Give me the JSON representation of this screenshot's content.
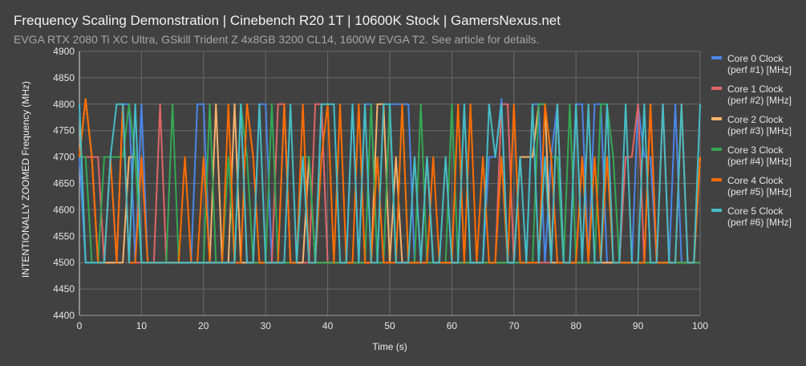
{
  "chart_data": {
    "type": "line",
    "title": "Frequency Scaling Demonstration | Cinebench R20 1T | 10600K Stock | GamersNexus.net",
    "subtitle": "EVGA RTX 2080 Ti XC Ultra, GSkill Trident Z 4x8GB 3200 CL14, 1600W EVGA T2. See article for details.",
    "xlabel": "Time (s)",
    "ylabel": "INTENTIONALLY ZOOMED Frequency (MHz)",
    "xlim": [
      0,
      100
    ],
    "ylim": [
      4400,
      4900
    ],
    "xticks": [
      0,
      10,
      20,
      30,
      40,
      50,
      60,
      70,
      80,
      90,
      100
    ],
    "yticks": [
      4400,
      4450,
      4500,
      4550,
      4600,
      4650,
      4700,
      4750,
      4800,
      4850,
      4900
    ],
    "grid": true,
    "legend_position": "right",
    "series": [
      {
        "name": "Core 0 Clock (perf #1) [MHz]",
        "line1": "Core 0 Clock",
        "line2": "(perf #1) [MHz]",
        "color": "#4a86e8",
        "values": [
          4700,
          4500,
          4500,
          4500,
          4500,
          4700,
          4500,
          4800,
          4800,
          4500,
          4800,
          4500,
          4500,
          4500,
          4500,
          4500,
          4500,
          4500,
          4500,
          4800,
          4800,
          4500,
          4500,
          4500,
          4500,
          4500,
          4500,
          4500,
          4500,
          4800,
          4800,
          4500,
          4500,
          4800,
          4500,
          4500,
          4500,
          4700,
          4500,
          4800,
          4500,
          4500,
          4500,
          4500,
          4800,
          4500,
          4800,
          4800,
          4500,
          4500,
          4800,
          4800,
          4800,
          4800,
          4500,
          4500,
          4500,
          4500,
          4500,
          4500,
          4500,
          4500,
          4500,
          4500,
          4500,
          4500,
          4700,
          4700,
          4810,
          4500,
          4500,
          4500,
          4500,
          4800,
          4800,
          4500,
          4700,
          4800,
          4500,
          4500,
          4800,
          4800,
          4500,
          4800,
          4800,
          4500,
          4500,
          4500,
          4500,
          4500,
          4800,
          4700,
          4700,
          4500,
          4500,
          4500,
          4800,
          4500,
          4500,
          4500,
          4500
        ]
      },
      {
        "name": "Core 1 Clock (perf #2) [MHz]",
        "line1": "Core 1 Clock",
        "line2": "(perf #2) [MHz]",
        "color": "#e06666",
        "values": [
          4700,
          4700,
          4700,
          4700,
          4500,
          4500,
          4500,
          4800,
          4500,
          4500,
          4500,
          4500,
          4500,
          4800,
          4500,
          4500,
          4500,
          4500,
          4500,
          4500,
          4500,
          4500,
          4500,
          4500,
          4500,
          4500,
          4800,
          4500,
          4500,
          4500,
          4500,
          4500,
          4800,
          4800,
          4500,
          4500,
          4500,
          4500,
          4800,
          4800,
          4500,
          4500,
          4500,
          4500,
          4500,
          4500,
          4500,
          4500,
          4500,
          4500,
          4500,
          4500,
          4500,
          4500,
          4500,
          4500,
          4500,
          4500,
          4500,
          4500,
          4500,
          4500,
          4500,
          4500,
          4500,
          4500,
          4500,
          4500,
          4800,
          4800,
          4500,
          4500,
          4500,
          4500,
          4500,
          4500,
          4500,
          4800,
          4500,
          4500,
          4500,
          4500,
          4500,
          4500,
          4500,
          4500,
          4500,
          4500,
          4700,
          4700,
          4800,
          4500,
          4800,
          4500,
          4800,
          4500,
          4500,
          4500,
          4500,
          4500,
          4500
        ]
      },
      {
        "name": "Core 2 Clock (perf #3) [MHz]",
        "line1": "Core 2 Clock",
        "line2": "(perf #3) [MHz]",
        "color": "#f6b26b",
        "values": [
          4700,
          4810,
          4700,
          4500,
          4500,
          4500,
          4500,
          4500,
          4700,
          4700,
          4500,
          4500,
          4500,
          4500,
          4500,
          4500,
          4500,
          4500,
          4500,
          4500,
          4500,
          4500,
          4800,
          4500,
          4500,
          4800,
          4500,
          4500,
          4500,
          4500,
          4500,
          4500,
          4500,
          4500,
          4500,
          4500,
          4500,
          4700,
          4500,
          4500,
          4500,
          4500,
          4500,
          4500,
          4500,
          4500,
          4500,
          4500,
          4800,
          4800,
          4500,
          4700,
          4500,
          4500,
          4500,
          4500,
          4700,
          4500,
          4500,
          4500,
          4500,
          4500,
          4500,
          4500,
          4500,
          4500,
          4500,
          4500,
          4500,
          4500,
          4500,
          4700,
          4700,
          4700,
          4800,
          4800,
          4500,
          4500,
          4500,
          4500,
          4500,
          4500,
          4500,
          4500,
          4500,
          4500,
          4500,
          4500,
          4500,
          4500,
          4500,
          4500,
          4500,
          4500,
          4500,
          4500,
          4500,
          4500,
          4500,
          4500,
          4700
        ]
      },
      {
        "name": "Core 3 Clock (perf #4) [MHz]",
        "line1": "Core 3 Clock",
        "line2": "(perf #4) [MHz]",
        "color": "#34a853",
        "values": [
          4700,
          4700,
          4500,
          4500,
          4700,
          4700,
          4700,
          4700,
          4800,
          4700,
          4500,
          4500,
          4500,
          4500,
          4500,
          4800,
          4500,
          4500,
          4500,
          4500,
          4500,
          4800,
          4500,
          4500,
          4700,
          4500,
          4800,
          4700,
          4500,
          4500,
          4500,
          4800,
          4500,
          4500,
          4500,
          4500,
          4700,
          4700,
          4500,
          4500,
          4500,
          4500,
          4500,
          4500,
          4500,
          4500,
          4500,
          4800,
          4500,
          4500,
          4800,
          4500,
          4800,
          4500,
          4500,
          4800,
          4500,
          4500,
          4500,
          4500,
          4800,
          4500,
          4500,
          4500,
          4500,
          4500,
          4500,
          4500,
          4500,
          4500,
          4500,
          4500,
          4500,
          4500,
          4800,
          4800,
          4700,
          4700,
          4500,
          4800,
          4500,
          4500,
          4500,
          4500,
          4800,
          4800,
          4700,
          4500,
          4500,
          4500,
          4500,
          4500,
          4500,
          4500,
          4500,
          4500,
          4500,
          4500,
          4500,
          4500,
          4500
        ]
      },
      {
        "name": "Core 4 Clock (perf #5) [MHz]",
        "line1": "Core 4 Clock",
        "line2": "(perf #5) [MHz]",
        "color": "#ff6d01",
        "values": [
          4700,
          4810,
          4700,
          4500,
          4500,
          4700,
          4500,
          4800,
          4500,
          4500,
          4700,
          4500,
          4500,
          4500,
          4500,
          4500,
          4500,
          4700,
          4500,
          4500,
          4700,
          4500,
          4500,
          4500,
          4800,
          4500,
          4500,
          4800,
          4700,
          4500,
          4500,
          4500,
          4500,
          4800,
          4500,
          4500,
          4800,
          4500,
          4500,
          4700,
          4800,
          4500,
          4800,
          4500,
          4500,
          4800,
          4500,
          4500,
          4700,
          4500,
          4500,
          4500,
          4800,
          4500,
          4500,
          4500,
          4500,
          4700,
          4500,
          4500,
          4500,
          4800,
          4500,
          4800,
          4500,
          4700,
          4500,
          4500,
          4700,
          4500,
          4800,
          4500,
          4500,
          4500,
          4500,
          4800,
          4700,
          4500,
          4500,
          4500,
          4500,
          4700,
          4500,
          4700,
          4500,
          4700,
          4500,
          4500,
          4500,
          4500,
          4500,
          4500,
          4800,
          4500,
          4500,
          4500,
          4500,
          4800,
          4500,
          4500,
          4700
        ]
      },
      {
        "name": "Core 5 Clock (perf #6) [MHz]",
        "line1": "Core 5 Clock",
        "line2": "(perf #6) [MHz]",
        "color": "#46bdc6",
        "values": [
          4800,
          4500,
          4500,
          4500,
          4500,
          4700,
          4800,
          4800,
          4500,
          4800,
          4500,
          4500,
          4500,
          4500,
          4500,
          4500,
          4500,
          4500,
          4500,
          4500,
          4500,
          4500,
          4500,
          4500,
          4500,
          4500,
          4800,
          4500,
          4500,
          4800,
          4500,
          4500,
          4500,
          4500,
          4800,
          4500,
          4700,
          4500,
          4500,
          4800,
          4800,
          4800,
          4500,
          4500,
          4800,
          4500,
          4800,
          4500,
          4500,
          4800,
          4800,
          4500,
          4500,
          4500,
          4700,
          4500,
          4700,
          4500,
          4500,
          4700,
          4500,
          4500,
          4800,
          4500,
          4500,
          4500,
          4800,
          4700,
          4800,
          4500,
          4500,
          4700,
          4500,
          4800,
          4500,
          4700,
          4500,
          4800,
          4500,
          4500,
          4800,
          4500,
          4800,
          4500,
          4500,
          4800,
          4500,
          4500,
          4800,
          4500,
          4500,
          4800,
          4500,
          4500,
          4800,
          4500,
          4500,
          4800,
          4500,
          4500,
          4800
        ]
      }
    ]
  }
}
